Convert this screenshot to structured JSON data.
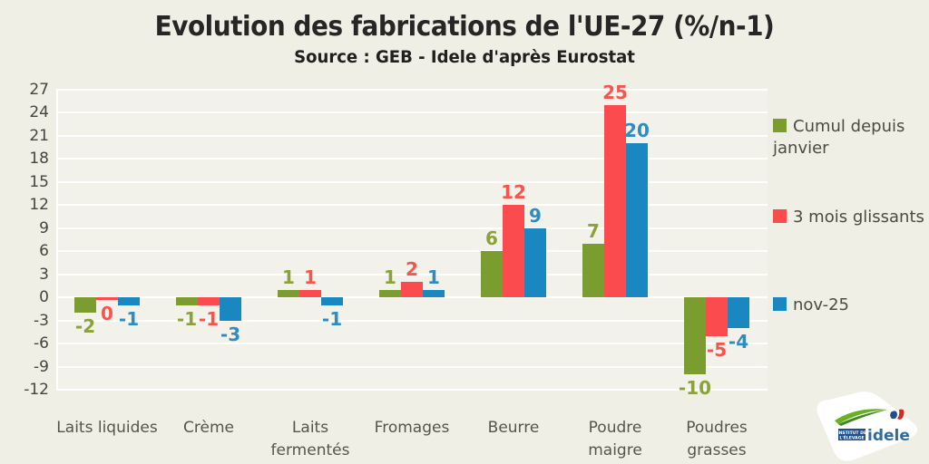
{
  "title": "Evolution des fabrications de l'UE-27 (%/n-1)",
  "subtitle": "Source : GEB - Idele d'après Eurostat",
  "chart_data": {
    "type": "bar",
    "categories": [
      "Laits liquides",
      "Crème",
      "Laits fermentés",
      "Fromages",
      "Beurre",
      "Poudre maigre",
      "Poudres grasses"
    ],
    "categories_display": [
      "Laits liquides",
      "Crème",
      "Laits\nfermentés",
      "Fromages",
      "Beurre",
      "Poudre\nmaigre",
      "Poudres\ngrasses"
    ],
    "series": [
      {
        "name": "Cumul depuis janvier",
        "color": "#7b9d2f",
        "label_color": "#8aa23b",
        "values": [
          -2,
          -1,
          1,
          1,
          6,
          7,
          -10
        ]
      },
      {
        "name": "3 mois glissants",
        "color": "#fb4b4e",
        "label_color": "#f6554e",
        "values": [
          0,
          -1,
          1,
          2,
          12,
          25,
          -5
        ]
      },
      {
        "name": "nov-25",
        "color": "#1b87c1",
        "label_color": "#2e8cbe",
        "values": [
          -1,
          -3,
          -1,
          1,
          9,
          20,
          -4
        ]
      }
    ],
    "ylim": [
      -12,
      27
    ],
    "ytick_step": 3,
    "grid": true,
    "grid_color": "#ffffff",
    "plot_background": "#f3f2ea",
    "page_background": "#f0efe5",
    "legend_position": "right",
    "value_labels": true
  },
  "legend_items": [
    "Cumul depuis janvier",
    "3 mois glissants",
    "nov-25"
  ],
  "logo": {
    "institute_line1": "INSTITUT DE",
    "institute_line2": "L'ÉLEVAGE",
    "brand": "idele",
    "brand_color": "#2d6ca2",
    "box_color": "#1d4f91",
    "swoosh_color": "#6ab023"
  }
}
